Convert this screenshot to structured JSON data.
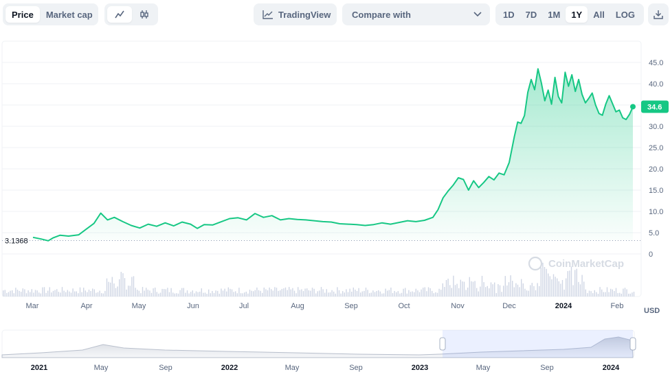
{
  "toolbar": {
    "metric_tabs": [
      "Price",
      "Market cap"
    ],
    "tradingview_label": "TradingView",
    "compare_label": "Compare with",
    "ranges": [
      "1D",
      "7D",
      "1M",
      "1Y",
      "All",
      "LOG"
    ],
    "active_range": "1Y"
  },
  "currency_label": "USD",
  "watermark": "CoinMarketCap",
  "colors": {
    "line": "#16c784",
    "down": "#ea3943",
    "badge": "#16c784"
  },
  "chart_data": {
    "type": "area",
    "y_ticks": [
      "45.0",
      "40.0",
      "35.0",
      "30.0",
      "25.0",
      "20.0",
      "15.0",
      "10.0",
      "5.0",
      "0"
    ],
    "ylim": [
      0,
      47
    ],
    "start_price_label": "3.1368",
    "current_price_label": "34.6",
    "x_month_labels": [
      "Mar",
      "Apr",
      "May",
      "Jun",
      "Jul",
      "Aug",
      "Sep",
      "Oct",
      "Nov",
      "Dec",
      "2024",
      "Feb"
    ],
    "x_month_bold": [
      false,
      false,
      false,
      false,
      false,
      false,
      false,
      false,
      false,
      false,
      true,
      false
    ],
    "series": [
      {
        "values_by_day": [
          [
            0,
            3.9
          ],
          [
            5,
            3.5
          ],
          [
            9,
            3.1
          ],
          [
            12,
            3.8
          ],
          [
            16,
            4.4
          ],
          [
            21,
            4.2
          ],
          [
            27,
            4.5
          ],
          [
            32,
            6.0
          ],
          [
            36,
            7.2
          ],
          [
            40,
            9.6
          ],
          [
            44,
            8.0
          ],
          [
            48,
            8.6
          ],
          [
            53,
            7.6
          ],
          [
            58,
            6.7
          ],
          [
            63,
            6.1
          ],
          [
            68,
            7.0
          ],
          [
            73,
            6.5
          ],
          [
            78,
            7.3
          ],
          [
            83,
            6.6
          ],
          [
            88,
            7.5
          ],
          [
            93,
            7.0
          ],
          [
            97,
            6.0
          ],
          [
            101,
            6.9
          ],
          [
            106,
            6.8
          ],
          [
            110,
            7.4
          ],
          [
            116,
            8.3
          ],
          [
            121,
            8.5
          ],
          [
            126,
            8.0
          ],
          [
            131,
            9.5
          ],
          [
            136,
            8.6
          ],
          [
            141,
            9.0
          ],
          [
            146,
            8.0
          ],
          [
            151,
            8.3
          ],
          [
            156,
            8.1
          ],
          [
            161,
            8.0
          ],
          [
            166,
            7.8
          ],
          [
            171,
            7.6
          ],
          [
            176,
            7.5
          ],
          [
            181,
            7.1
          ],
          [
            186,
            7.0
          ],
          [
            191,
            6.9
          ],
          [
            196,
            6.7
          ],
          [
            201,
            6.9
          ],
          [
            206,
            7.3
          ],
          [
            211,
            7.0
          ],
          [
            216,
            7.4
          ],
          [
            221,
            7.8
          ],
          [
            226,
            7.6
          ],
          [
            231,
            7.9
          ],
          [
            236,
            8.6
          ],
          [
            239,
            10.4
          ],
          [
            242,
            13.2
          ],
          [
            245,
            14.8
          ],
          [
            248,
            16.2
          ],
          [
            251,
            17.9
          ],
          [
            254,
            17.5
          ],
          [
            257,
            15.0
          ],
          [
            260,
            17.2
          ],
          [
            263,
            15.6
          ],
          [
            266,
            16.8
          ],
          [
            269,
            18.2
          ],
          [
            272,
            17.4
          ],
          [
            275,
            19.0
          ],
          [
            278,
            18.6
          ],
          [
            281,
            21.5
          ],
          [
            284,
            27.5
          ],
          [
            286,
            31.0
          ],
          [
            288,
            30.7
          ],
          [
            290,
            32.5
          ],
          [
            292,
            38.0
          ],
          [
            294,
            41.0
          ],
          [
            296,
            38.6
          ],
          [
            298,
            43.5
          ],
          [
            300,
            40.2
          ],
          [
            302,
            36.0
          ],
          [
            304,
            38.5
          ],
          [
            306,
            35.2
          ],
          [
            308,
            41.5
          ],
          [
            310,
            37.0
          ],
          [
            312,
            35.5
          ],
          [
            314,
            42.7
          ],
          [
            316,
            39.4
          ],
          [
            318,
            42.1
          ],
          [
            320,
            38.2
          ],
          [
            322,
            41.0
          ],
          [
            324,
            37.5
          ],
          [
            326,
            35.5
          ],
          [
            328,
            36.6
          ],
          [
            330,
            37.8
          ],
          [
            332,
            35.0
          ],
          [
            334,
            33.0
          ],
          [
            336,
            32.6
          ],
          [
            338,
            35.2
          ],
          [
            340,
            37.2
          ],
          [
            342,
            35.3
          ],
          [
            344,
            33.4
          ],
          [
            346,
            33.8
          ],
          [
            348,
            32.0
          ],
          [
            350,
            31.6
          ],
          [
            352,
            32.8
          ],
          [
            354,
            34.6
          ]
        ]
      }
    ]
  },
  "navigator": {
    "year_labels": [
      "2021",
      "May",
      "Sep",
      "2022",
      "May",
      "Sep",
      "2023",
      "May",
      "Sep",
      "2024"
    ],
    "year_bold": [
      true,
      false,
      false,
      true,
      false,
      false,
      true,
      false,
      false,
      true
    ]
  }
}
